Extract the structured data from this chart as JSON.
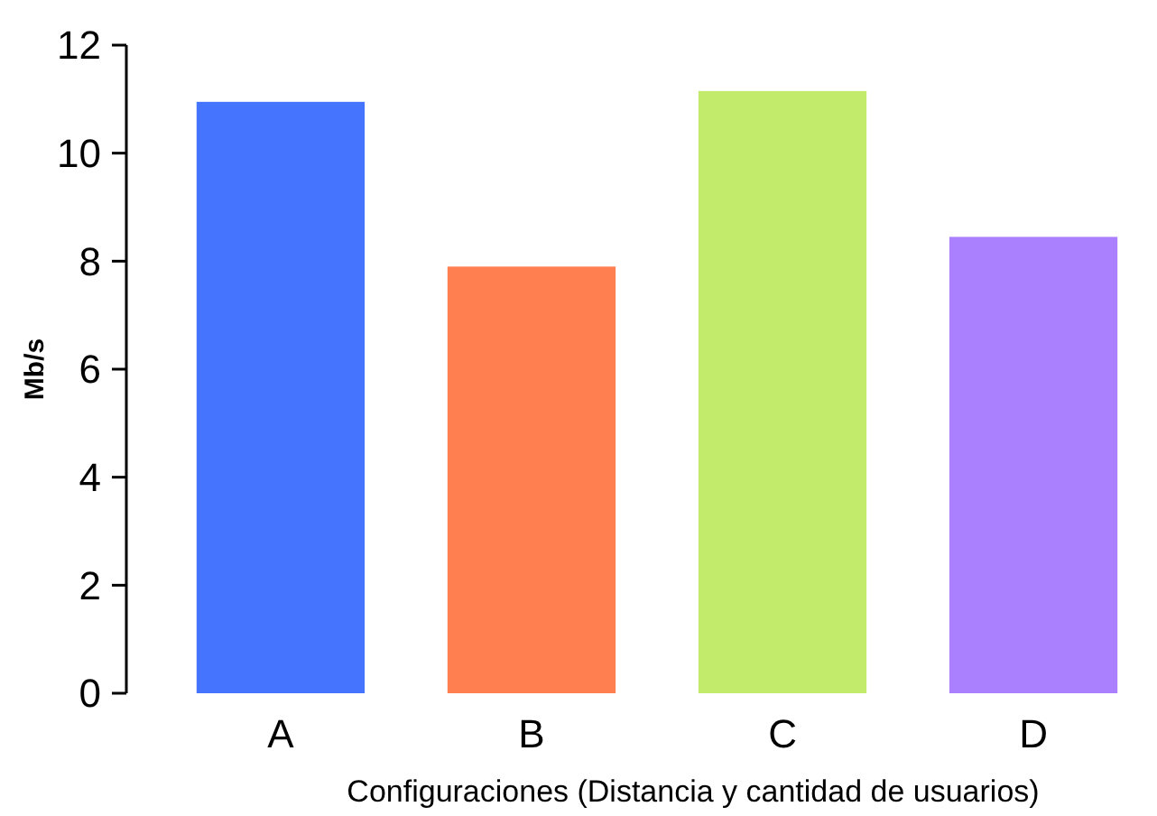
{
  "chart_data": {
    "type": "bar",
    "xlabel": "Configuraciones (Distancia y cantidad de usuarios)",
    "ylabel": "Mb/s",
    "categories": [
      "A",
      "B",
      "C",
      "D"
    ],
    "values": [
      10.95,
      7.9,
      11.15,
      8.45
    ],
    "colors": [
      "#4575ff",
      "#ff7f50",
      "#c2eb6b",
      "#aa80ff"
    ],
    "ylim": [
      0,
      12
    ],
    "yticks": [
      0,
      2,
      4,
      6,
      8,
      10,
      12
    ],
    "grid": false
  }
}
